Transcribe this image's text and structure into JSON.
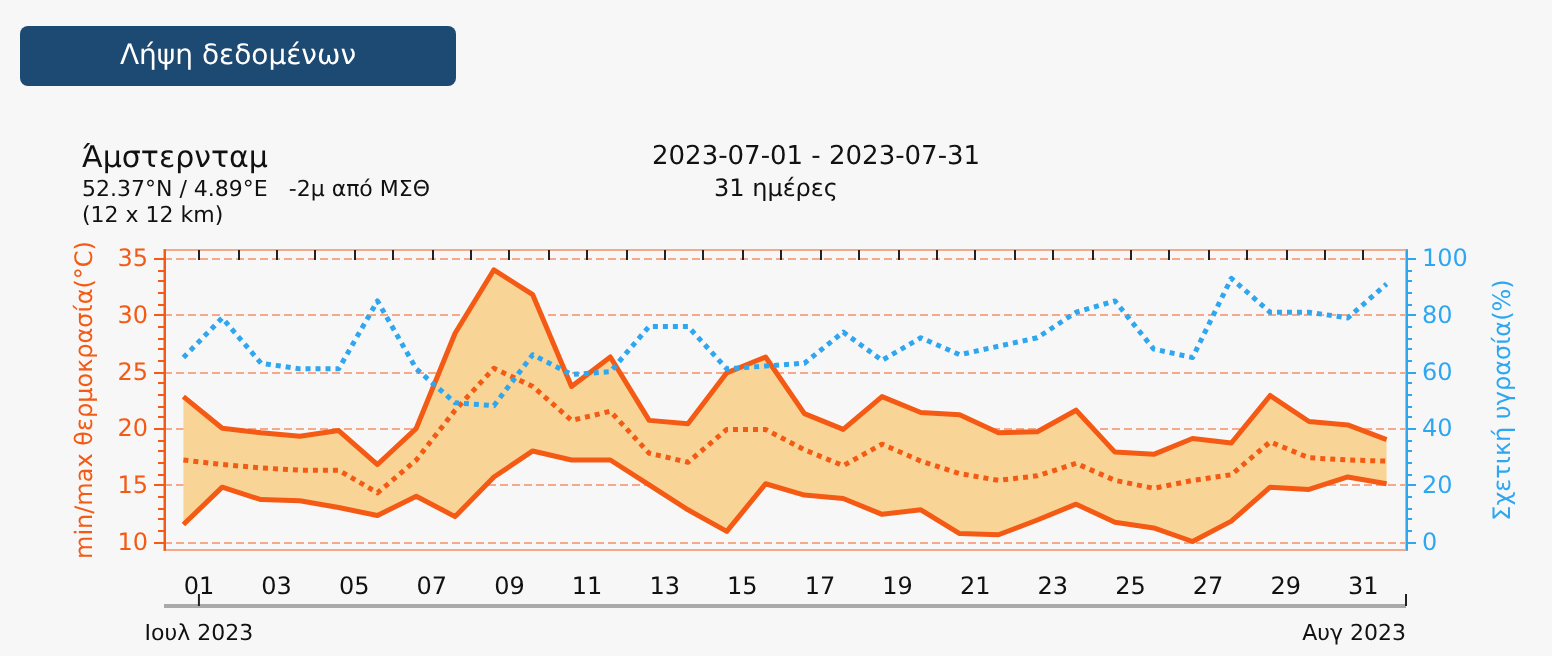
{
  "chart_data": {
    "type": "line",
    "title": "Άμστερνταμ",
    "subtitle": "52.37°N / 4.89°E   -2μ από ΜΣΘ",
    "annotations": [
      "Λήψη δεδομένων",
      "(12 x 12 km)",
      "2023-07-01 - 2023-07-31",
      "31 ημέρες",
      "Ιουλ 2023",
      "Αυγ 2023"
    ],
    "ylabel": "min/max θερμοκρασία(°C)",
    "y2label": "Σχετική υγρασία(%)",
    "x": [
      0.6,
      1.6,
      2.6,
      3.6,
      4.6,
      5.6,
      6.6,
      7.6,
      8.6,
      9.6,
      10.6,
      11.6,
      12.6,
      13.6,
      14.6,
      15.6,
      16.6,
      17.6,
      18.6,
      19.6,
      20.6,
      21.6,
      22.6,
      23.6,
      24.6,
      25.6,
      26.6,
      27.6,
      28.6,
      29.6,
      30.6,
      31.6
    ],
    "xlim": [
      0.1,
      32.1
    ],
    "xticks": [
      {
        "value": 1,
        "label": "01"
      },
      {
        "value": 2,
        "label": null
      },
      {
        "value": 3,
        "label": "03"
      },
      {
        "value": 4,
        "label": null
      },
      {
        "value": 5,
        "label": "05"
      },
      {
        "value": 6,
        "label": null
      },
      {
        "value": 7,
        "label": "07"
      },
      {
        "value": 8,
        "label": null
      },
      {
        "value": 9,
        "label": "09"
      },
      {
        "value": 10,
        "label": null
      },
      {
        "value": 11,
        "label": "11"
      },
      {
        "value": 12,
        "label": null
      },
      {
        "value": 13,
        "label": "13"
      },
      {
        "value": 14,
        "label": null
      },
      {
        "value": 15,
        "label": "15"
      },
      {
        "value": 16,
        "label": null
      },
      {
        "value": 17,
        "label": "17"
      },
      {
        "value": 18,
        "label": null
      },
      {
        "value": 19,
        "label": "19"
      },
      {
        "value": 20,
        "label": null
      },
      {
        "value": 21,
        "label": "21"
      },
      {
        "value": 22,
        "label": null
      },
      {
        "value": 23,
        "label": "23"
      },
      {
        "value": 24,
        "label": null
      },
      {
        "value": 25,
        "label": "25"
      },
      {
        "value": 26,
        "label": null
      },
      {
        "value": 27,
        "label": "27"
      },
      {
        "value": 28,
        "label": null
      },
      {
        "value": 29,
        "label": "29"
      },
      {
        "value": 30,
        "label": null
      },
      {
        "value": 31,
        "label": "31"
      }
    ],
    "ylim": [
      9.25,
      35.75
    ],
    "yticks": [
      10,
      15,
      20,
      25,
      30,
      35
    ],
    "y2lim": [
      -3,
      103
    ],
    "y2ticks": [
      0,
      20,
      40,
      60,
      80,
      100
    ],
    "grid": "y",
    "marker": "none",
    "series": [
      {
        "color": "#f45a14",
        "line_style": "solid",
        "values": [
          11.5,
          14.8,
          13.7,
          13.6,
          13.0,
          12.3,
          14.0,
          12.2,
          15.7,
          18.0,
          17.2,
          17.2,
          15.0,
          12.8,
          10.9,
          15.1,
          14.1,
          13.8,
          12.4,
          12.8,
          10.7,
          10.6,
          11.9,
          13.3,
          11.7,
          11.2,
          10.0,
          11.8,
          14.8,
          14.6,
          15.7,
          15.1
        ]
      },
      {
        "color": "#f45a14",
        "line_style": "solid",
        "values": [
          22.8,
          20.0,
          19.6,
          19.3,
          19.8,
          16.8,
          20.0,
          28.4,
          34.0,
          31.8,
          23.7,
          26.3,
          20.7,
          20.4,
          24.9,
          26.3,
          21.3,
          19.9,
          22.8,
          21.4,
          21.2,
          19.6,
          19.7,
          21.6,
          17.9,
          17.7,
          19.1,
          18.7,
          22.9,
          20.6,
          20.3,
          19.0
        ]
      },
      {
        "color": "#f45a14",
        "line_style": "dotted",
        "values": [
          17.2,
          16.8,
          16.5,
          16.3,
          16.3,
          14.3,
          17.2,
          21.6,
          25.3,
          23.7,
          20.7,
          21.5,
          17.8,
          17.0,
          19.9,
          19.9,
          18.1,
          16.7,
          18.6,
          17.1,
          16.0,
          15.4,
          15.8,
          16.9,
          15.4,
          14.7,
          15.4,
          15.9,
          18.8,
          17.4,
          17.2,
          17.1
        ],
        "lower": [
          11.5,
          14.8,
          13.7,
          13.6,
          13.0,
          12.3,
          14.0,
          12.2,
          15.7,
          18.0,
          17.2,
          17.2,
          15.0,
          12.8,
          10.9,
          15.1,
          14.1,
          13.8,
          12.4,
          12.8,
          10.7,
          10.6,
          11.9,
          13.3,
          11.7,
          11.2,
          10.0,
          11.8,
          14.8,
          14.6,
          15.7,
          15.1
        ],
        "upper": [
          22.8,
          20.0,
          19.6,
          19.3,
          19.8,
          16.8,
          20.0,
          28.4,
          34.0,
          31.8,
          23.7,
          26.3,
          20.7,
          20.4,
          24.9,
          26.3,
          21.3,
          19.9,
          22.8,
          21.4,
          21.2,
          19.6,
          19.7,
          21.6,
          17.9,
          17.7,
          19.1,
          18.7,
          22.9,
          20.6,
          20.3,
          19.0
        ]
      },
      {
        "color": "#2ea7f0",
        "line_style": "dotted",
        "axis": "y2",
        "values": [
          65,
          79,
          63,
          61,
          61,
          85,
          61,
          49,
          48,
          66,
          59,
          60,
          76,
          76,
          61,
          62,
          63,
          74,
          64,
          72,
          66,
          69,
          72,
          81,
          85,
          68,
          65,
          93,
          81,
          81,
          79,
          91
        ]
      }
    ]
  }
}
